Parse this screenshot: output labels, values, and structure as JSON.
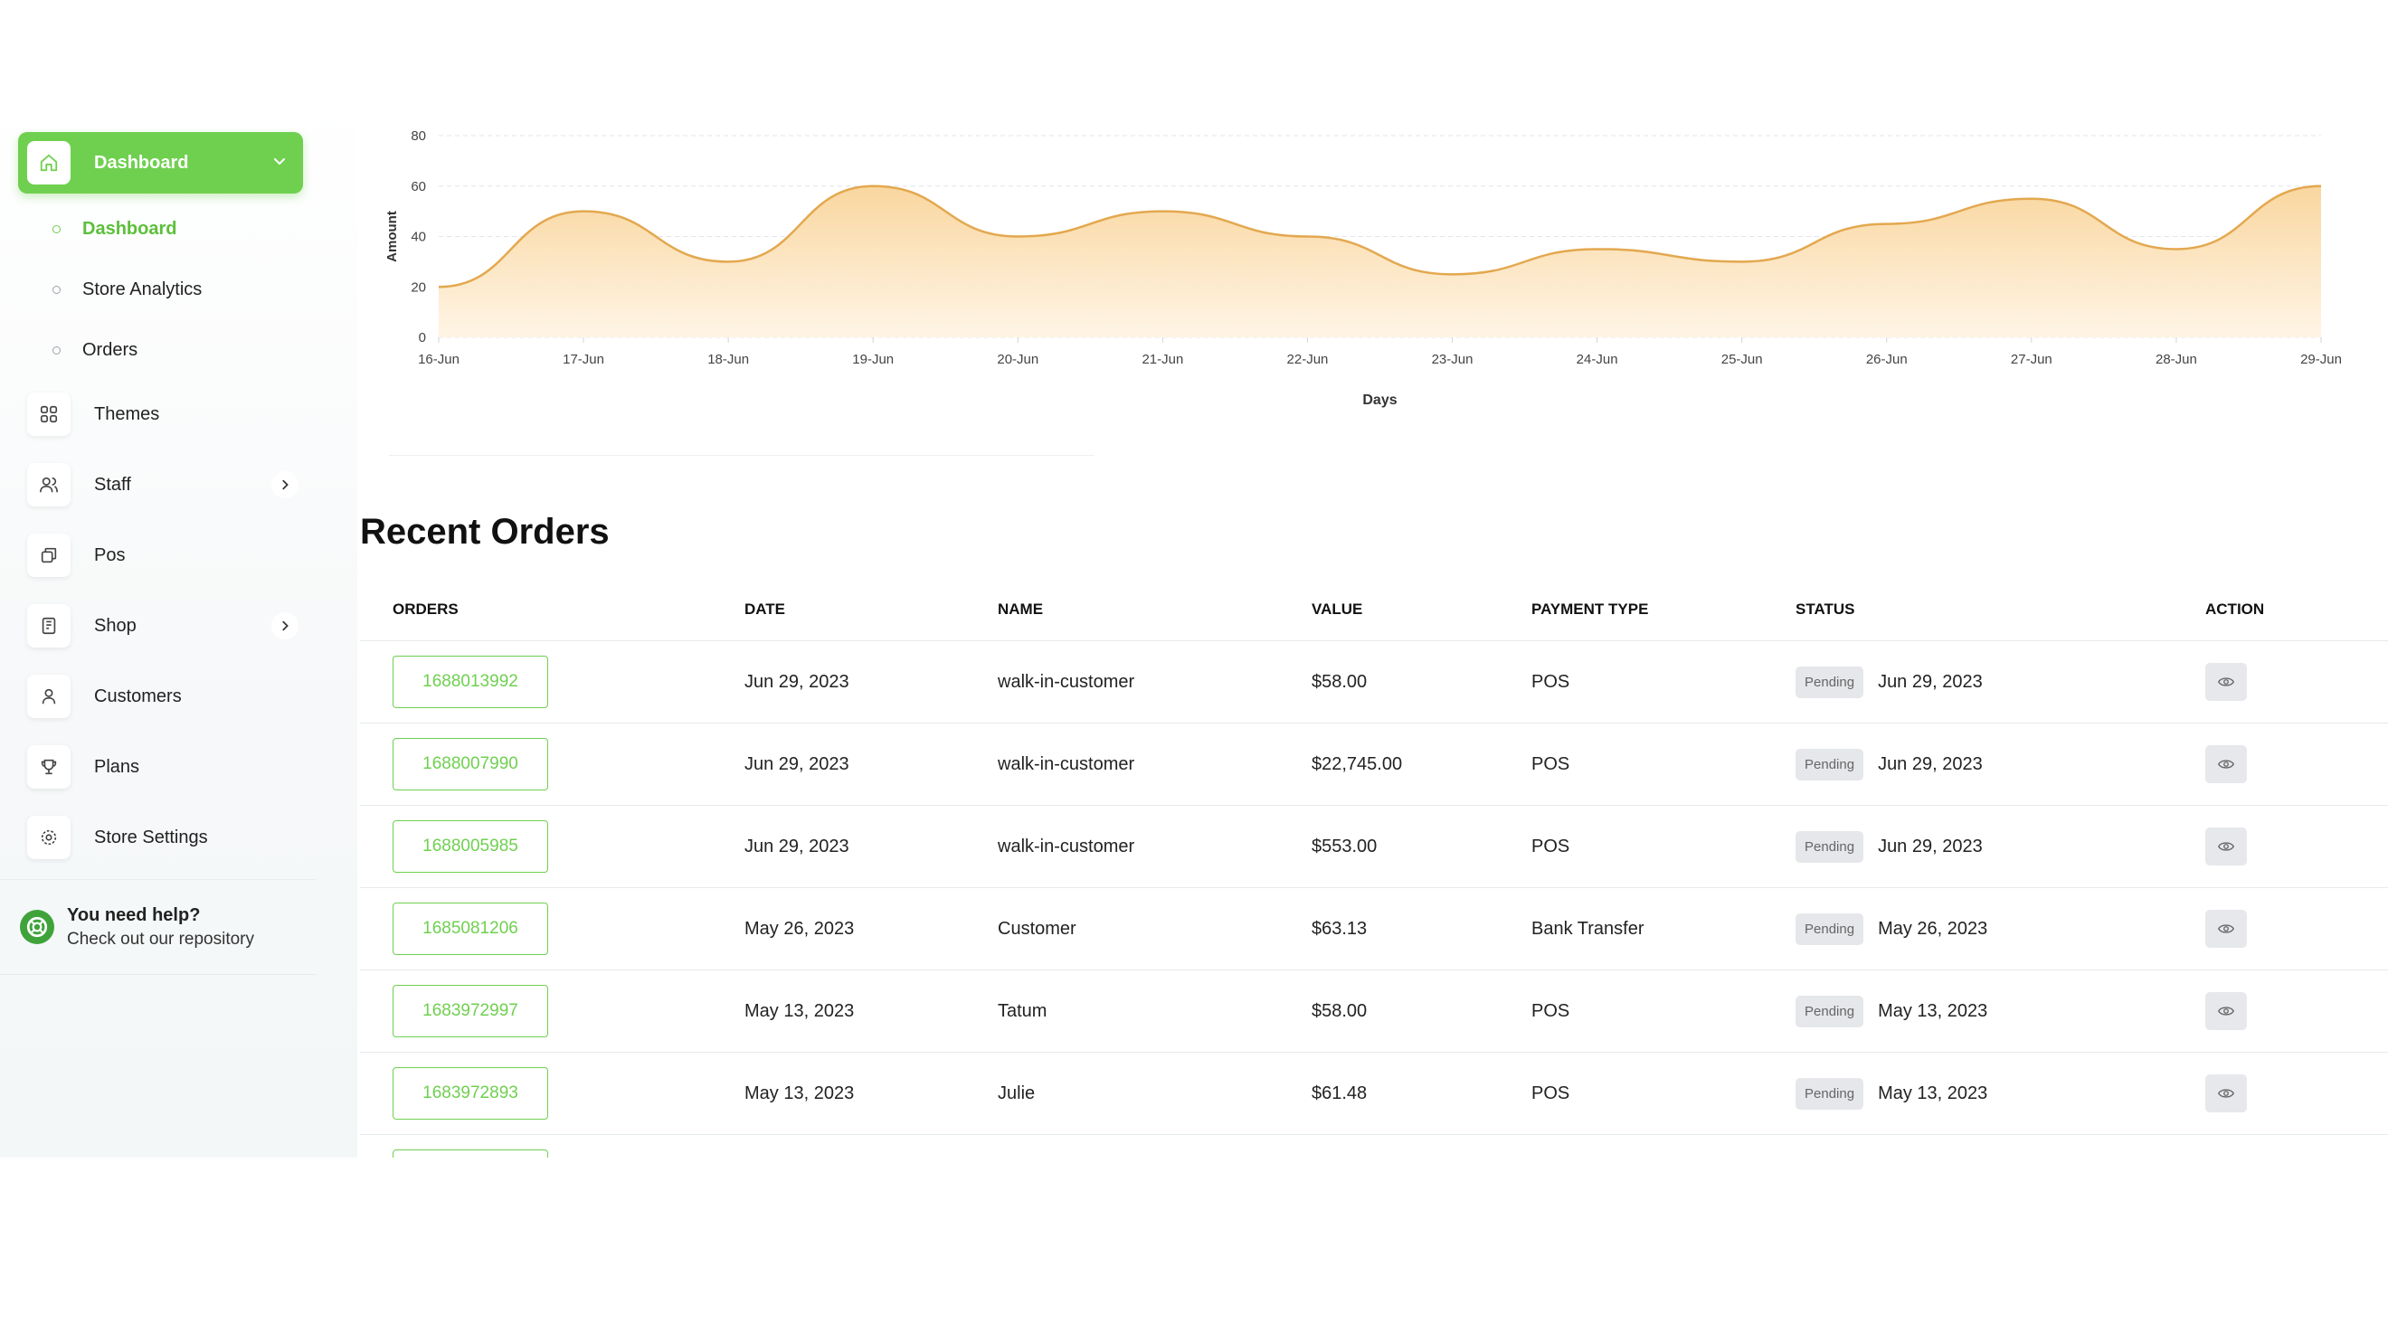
{
  "sidebar": {
    "dashboard": {
      "label": "Dashboard",
      "icon": "home-icon"
    },
    "sub_items": [
      {
        "label": "Dashboard",
        "active": true
      },
      {
        "label": "Store Analytics",
        "active": false
      },
      {
        "label": "Orders",
        "active": false
      }
    ],
    "items": [
      {
        "label": "Themes",
        "icon": "themes-grid-icon",
        "has_submenu": false
      },
      {
        "label": "Staff",
        "icon": "users-icon",
        "has_submenu": true
      },
      {
        "label": "Pos",
        "icon": "pos-icon",
        "has_submenu": false
      },
      {
        "label": "Shop",
        "icon": "shop-icon",
        "has_submenu": true
      },
      {
        "label": "Customers",
        "icon": "user-icon",
        "has_submenu": false
      },
      {
        "label": "Plans",
        "icon": "trophy-icon",
        "has_submenu": false
      },
      {
        "label": "Store Settings",
        "icon": "settings-icon",
        "has_submenu": false
      }
    ],
    "help": {
      "title": "You need help?",
      "subtitle": "Check out our repository"
    }
  },
  "chart_data": {
    "type": "area",
    "xlabel": "Days",
    "ylabel": "Amount",
    "ylim": [
      0,
      80
    ],
    "yticks": [
      0,
      20,
      40,
      60,
      80
    ],
    "categories": [
      "16-Jun",
      "17-Jun",
      "18-Jun",
      "19-Jun",
      "20-Jun",
      "21-Jun",
      "22-Jun",
      "23-Jun",
      "24-Jun",
      "25-Jun",
      "26-Jun",
      "27-Jun",
      "28-Jun",
      "29-Jun"
    ],
    "series": [
      {
        "values": [
          20,
          50,
          30,
          60,
          40,
          50,
          40,
          25,
          35,
          30,
          45,
          55,
          35,
          60
        ]
      }
    ],
    "grid": true,
    "colors": {
      "line": "#e3a84f",
      "fill_top": "#f9d49a",
      "fill_bottom": "#fff4e3"
    }
  },
  "orders": {
    "title": "Recent Orders",
    "columns": [
      "ORDERS",
      "DATE",
      "NAME",
      "VALUE",
      "PAYMENT TYPE",
      "STATUS",
      "ACTION"
    ],
    "rows": [
      {
        "id": "1688013992",
        "date": "Jun 29, 2023",
        "name": "walk-in-customer",
        "value": "$58.00",
        "payment": "POS",
        "status": "Pending",
        "status_date": "Jun 29, 2023"
      },
      {
        "id": "1688007990",
        "date": "Jun 29, 2023",
        "name": "walk-in-customer",
        "value": "$22,745.00",
        "payment": "POS",
        "status": "Pending",
        "status_date": "Jun 29, 2023"
      },
      {
        "id": "1688005985",
        "date": "Jun 29, 2023",
        "name": "walk-in-customer",
        "value": "$553.00",
        "payment": "POS",
        "status": "Pending",
        "status_date": "Jun 29, 2023"
      },
      {
        "id": "1685081206",
        "date": "May 26, 2023",
        "name": "Customer",
        "value": "$63.13",
        "payment": "Bank Transfer",
        "status": "Pending",
        "status_date": "May 26, 2023"
      },
      {
        "id": "1683972997",
        "date": "May 13, 2023",
        "name": "Tatum",
        "value": "$58.00",
        "payment": "POS",
        "status": "Pending",
        "status_date": "May 13, 2023"
      },
      {
        "id": "1683972893",
        "date": "May 13, 2023",
        "name": "Julie",
        "value": "$61.48",
        "payment": "POS",
        "status": "Pending",
        "status_date": "May 13, 2023"
      }
    ]
  },
  "colors": {
    "accent": "#6fd04f"
  }
}
